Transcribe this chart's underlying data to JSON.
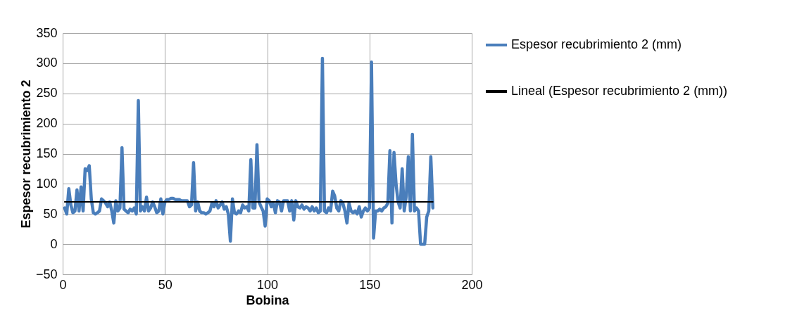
{
  "chart_data": {
    "type": "line",
    "xlabel": "Bobina",
    "ylabel": "Espesor recubrimiento 2",
    "xlim": [
      0,
      200
    ],
    "xticks": [
      0,
      50,
      100,
      150,
      200
    ],
    "ylim": [
      -50,
      350
    ],
    "yticks": [
      -50,
      0,
      50,
      100,
      150,
      200,
      250,
      300,
      350
    ],
    "grid": true,
    "legend": "right",
    "series": [
      {
        "name": "Espesor recubrimiento 2 (mm)",
        "color": "#4a7ebb",
        "x": [
          1,
          2,
          3,
          4,
          5,
          6,
          7,
          8,
          9,
          10,
          11,
          12,
          13,
          14,
          15,
          16,
          17,
          18,
          19,
          20,
          21,
          22,
          23,
          24,
          25,
          26,
          27,
          28,
          29,
          30,
          31,
          32,
          33,
          34,
          35,
          36,
          37,
          38,
          39,
          40,
          41,
          42,
          43,
          44,
          45,
          46,
          47,
          48,
          49,
          50,
          51,
          52,
          53,
          54,
          55,
          56,
          57,
          58,
          59,
          60,
          61,
          62,
          63,
          64,
          65,
          66,
          67,
          68,
          69,
          70,
          71,
          72,
          73,
          74,
          75,
          76,
          77,
          78,
          79,
          80,
          81,
          82,
          83,
          84,
          85,
          86,
          87,
          88,
          89,
          90,
          91,
          92,
          93,
          94,
          95,
          96,
          97,
          98,
          99,
          100,
          101,
          102,
          103,
          104,
          105,
          106,
          107,
          108,
          109,
          110,
          111,
          112,
          113,
          114,
          115,
          116,
          117,
          118,
          119,
          120,
          121,
          122,
          123,
          124,
          125,
          126,
          127,
          128,
          129,
          130,
          131,
          132,
          133,
          134,
          135,
          136,
          137,
          138,
          139,
          140,
          141,
          142,
          143,
          144,
          145,
          146,
          147,
          148,
          149,
          150,
          151,
          152,
          153,
          154,
          155,
          156,
          157,
          158,
          159,
          160,
          161,
          162,
          163,
          164,
          165,
          166,
          167,
          168,
          169,
          170,
          171,
          172,
          173,
          174,
          175,
          176,
          177,
          178,
          179,
          180,
          181
        ],
        "values": [
          60,
          50,
          92,
          65,
          52,
          55,
          90,
          55,
          95,
          55,
          125,
          122,
          130,
          75,
          52,
          50,
          52,
          55,
          75,
          72,
          68,
          62,
          70,
          55,
          35,
          72,
          55,
          60,
          160,
          58,
          55,
          52,
          58,
          55,
          60,
          50,
          238,
          55,
          62,
          55,
          78,
          55,
          60,
          70,
          62,
          52,
          55,
          75,
          50,
          70,
          74,
          74,
          76,
          76,
          74,
          74,
          74,
          72,
          72,
          72,
          72,
          62,
          65,
          135,
          55,
          70,
          55,
          52,
          52,
          50,
          52,
          55,
          68,
          62,
          72,
          60,
          65,
          70,
          58,
          62,
          50,
          5,
          75,
          52,
          50,
          55,
          52,
          65,
          60,
          62,
          55,
          140,
          60,
          60,
          165,
          70,
          62,
          55,
          30,
          75,
          72,
          62,
          68,
          52,
          72,
          70,
          55,
          72,
          72,
          72,
          55,
          72,
          40,
          72,
          62,
          60,
          65,
          58,
          62,
          60,
          55,
          62,
          55,
          60,
          52,
          55,
          308,
          55,
          52,
          60,
          55,
          88,
          80,
          60,
          55,
          72,
          68,
          55,
          35,
          68,
          55,
          52,
          55,
          50,
          62,
          45,
          55,
          60,
          55,
          60,
          302,
          10,
          55,
          55,
          58,
          55,
          60,
          62,
          68,
          155,
          35,
          152,
          100,
          70,
          60,
          125,
          55,
          80,
          145,
          55,
          182,
          55,
          60,
          55,
          0,
          0,
          0,
          45,
          55,
          145,
          60
        ]
      },
      {
        "name": "Lineal (Espesor recubrimiento 2 (mm))",
        "color": "#000000",
        "x": [
          1,
          181
        ],
        "values": [
          70,
          70
        ]
      }
    ]
  }
}
